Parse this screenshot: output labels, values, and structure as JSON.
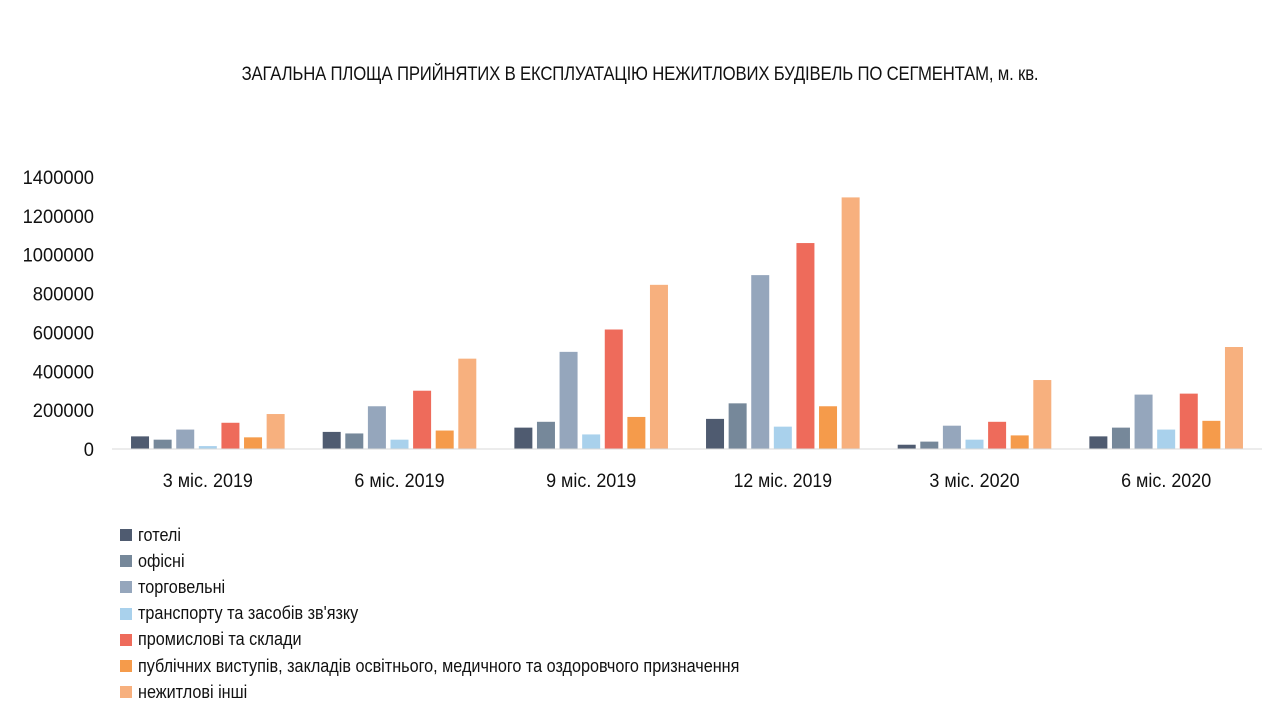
{
  "chart_data": {
    "type": "bar",
    "title": "ЗАГАЛЬНА ПЛОЩА ПРИЙНЯТИХ В ЕКСПЛУАТАЦІЮ НЕЖИТЛОВИХ БУДІВЕЛЬ ПО СЕГМЕНТАМ, м. кв.",
    "xlabel": "",
    "ylabel": "",
    "ylim": [
      0,
      1400000
    ],
    "yticks": [
      "0",
      "200000",
      "400000",
      "600000",
      "800000",
      "1000000",
      "1200000",
      "1400000"
    ],
    "grid": false,
    "legend_position": "bottom-left",
    "categories": [
      "3 міс. 2019",
      "6 міс. 2019",
      "9 міс. 2019",
      "12 міс. 2019",
      "3 міс. 2020",
      "6 міс. 2020"
    ],
    "series": [
      {
        "name": "готелі",
        "color": "#4f5b70",
        "values": [
          65000,
          88000,
          110000,
          155000,
          22000,
          65000
        ]
      },
      {
        "name": "офісні",
        "color": "#76889a",
        "values": [
          48000,
          80000,
          140000,
          235000,
          38000,
          110000
        ]
      },
      {
        "name": "торговельні",
        "color": "#95a6bc",
        "values": [
          100000,
          220000,
          500000,
          895000,
          120000,
          280000
        ]
      },
      {
        "name": "транспорту та засобів зв'язку",
        "color": "#a9d1ec",
        "values": [
          15000,
          48000,
          75000,
          115000,
          48000,
          100000
        ]
      },
      {
        "name": "промислові та склади",
        "color": "#ee6b5b",
        "values": [
          135000,
          300000,
          615000,
          1060000,
          140000,
          285000
        ]
      },
      {
        "name": "публічних виступів, закладів освітнього, медичного та оздоровчого призначення",
        "color": "#f59b4b",
        "values": [
          60000,
          95000,
          165000,
          220000,
          70000,
          145000
        ]
      },
      {
        "name": "нежитлові інші",
        "color": "#f7b07e",
        "values": [
          180000,
          465000,
          845000,
          1295000,
          355000,
          525000
        ]
      }
    ]
  }
}
